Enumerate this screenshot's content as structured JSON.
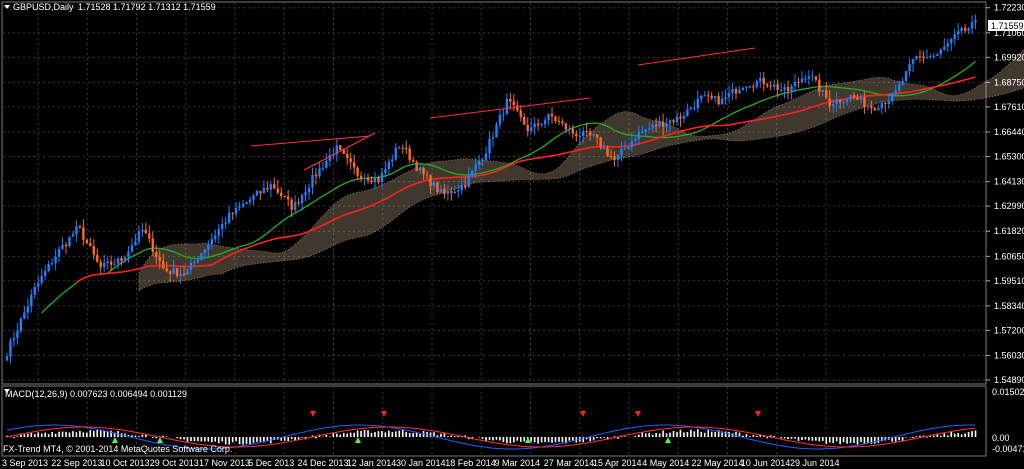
{
  "window": {
    "symbol_label": "GBPUSD,Daily",
    "ohlc_label": "1.71528 1.71792 1.71312 1.71559",
    "menu_icon": "triangle-down-icon"
  },
  "indicator": {
    "label": "MACD(12,26,9) 0.007623 0.006494 0.001129",
    "scale_top": "0.015021",
    "scale_mid": "0.00",
    "scale_bottom": "-0.004716"
  },
  "watermark": {
    "line1": "FX-Trend MT4, © 2001-2014 MetaQuotes Software Corp."
  },
  "colors": {
    "background": "#000000",
    "grid": "#3a3a3a",
    "bull_candle": "#1e7fff",
    "bear_candle": "#ff6a1e",
    "ma_fast": "#ff2020",
    "ma_slow": "#20b020",
    "cloud": "#e8c8a0",
    "macd_hist": "#ffffff",
    "macd_line": "#2060ff",
    "signal_line": "#ff3030",
    "arrow_up": "#40ff40",
    "arrow_down": "#ff2020"
  },
  "chart_data": {
    "type": "candlestick",
    "y_ticks": [
      "1.72230",
      "1.71060",
      "1.69920",
      "1.68750",
      "1.67610",
      "1.66440",
      "1.65300",
      "1.64130",
      "1.62990",
      "1.61820",
      "1.60650",
      "1.59510",
      "1.58340",
      "1.57200",
      "1.56030",
      "1.54890"
    ],
    "current_price": "1.71559",
    "x_ticks": [
      "3 Sep 2013",
      "22 Sep 2013",
      "10 Oct 2013",
      "29 Oct 2013",
      "17 Nov 2013",
      "5 Dec 2013",
      "24 Dec 2013",
      "12 Jan 2014",
      "30 Jan 2014",
      "18 Feb 2014",
      "9 Mar 2014",
      "27 Mar 2014",
      "15 Apr 2014",
      "4 May 2014",
      "22 May 2014",
      "10 Jun 2014",
      "29 Jun 2014"
    ],
    "ylim": [
      1.5475,
      1.7245
    ],
    "series_close_anchors": [
      [
        0,
        1.562
      ],
      [
        8,
        1.592
      ],
      [
        14,
        1.608
      ],
      [
        20,
        1.62
      ],
      [
        26,
        1.601
      ],
      [
        32,
        1.605
      ],
      [
        38,
        1.619
      ],
      [
        44,
        1.6
      ],
      [
        50,
        1.5985
      ],
      [
        56,
        1.612
      ],
      [
        62,
        1.625
      ],
      [
        68,
        1.633
      ],
      [
        74,
        1.64
      ],
      [
        80,
        1.629
      ],
      [
        86,
        1.644
      ],
      [
        92,
        1.657
      ],
      [
        98,
        1.645
      ],
      [
        104,
        1.642
      ],
      [
        110,
        1.659
      ],
      [
        116,
        1.645
      ],
      [
        122,
        1.635
      ],
      [
        128,
        1.64
      ],
      [
        134,
        1.656
      ],
      [
        140,
        1.679
      ],
      [
        146,
        1.665
      ],
      [
        152,
        1.672
      ],
      [
        158,
        1.664
      ],
      [
        164,
        1.662
      ],
      [
        170,
        1.651
      ],
      [
        176,
        1.663
      ],
      [
        182,
        1.668
      ],
      [
        188,
        1.671
      ],
      [
        194,
        1.68
      ],
      [
        200,
        1.679
      ],
      [
        206,
        1.687
      ],
      [
        212,
        1.688
      ],
      [
        218,
        1.683
      ],
      [
        224,
        1.692
      ],
      [
        230,
        1.678
      ],
      [
        236,
        1.681
      ],
      [
        242,
        1.676
      ],
      [
        248,
        1.681
      ],
      [
        254,
        1.699
      ],
      [
        260,
        1.7
      ],
      [
        266,
        1.71
      ],
      [
        272,
        1.7156
      ]
    ]
  }
}
